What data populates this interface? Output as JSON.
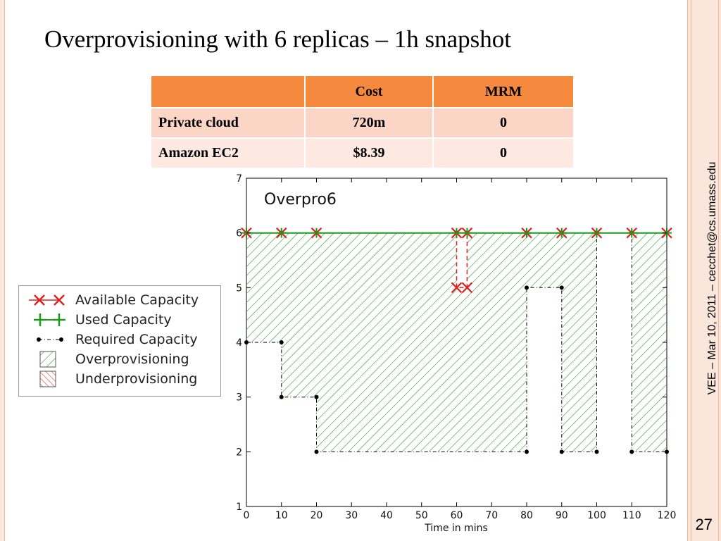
{
  "slide": {
    "title": "Overprovisioning with 6 replicas – 1h snapshot",
    "footer_vertical": "VEE – Mar 10, 2011 – cecchet@cs.umass.edu",
    "page_number": "27"
  },
  "table": {
    "headers": [
      "",
      "Cost",
      "MRM"
    ],
    "rows": [
      [
        "Private cloud",
        "720m",
        "0"
      ],
      [
        "Amazon EC2",
        "$8.39",
        "0"
      ]
    ]
  },
  "legend": {
    "items": [
      {
        "label": "Available Capacity",
        "icon": "red-x-markers"
      },
      {
        "label": "Used Capacity",
        "icon": "green-plus-markers"
      },
      {
        "label": "Required Capacity",
        "icon": "black-dot-dashdot"
      },
      {
        "label": "Overprovisioning",
        "icon": "green-hatch"
      },
      {
        "label": "Underprovisioning",
        "icon": "red-hatch"
      }
    ]
  },
  "chart_data": {
    "type": "line",
    "title": "Overpro6",
    "xlabel": "Time in mins",
    "ylabel": "",
    "xlim": [
      0,
      120
    ],
    "ylim": [
      1,
      7
    ],
    "xticks": [
      0,
      10,
      20,
      30,
      40,
      50,
      60,
      70,
      80,
      90,
      100,
      110,
      120
    ],
    "yticks": [
      1,
      2,
      3,
      4,
      5,
      6,
      7
    ],
    "grid": false,
    "colors": {
      "available": "#dd2222",
      "used": "#1a9a1a",
      "required": "#000000",
      "over_hatch": "#2a9a2a",
      "under_hatch": "#e03030"
    },
    "series": [
      {
        "name": "Available Capacity",
        "points": [
          [
            0,
            6
          ],
          [
            10,
            6
          ],
          [
            20,
            6
          ],
          [
            60,
            6
          ],
          [
            60,
            5
          ],
          [
            63,
            5
          ],
          [
            63,
            6
          ],
          [
            80,
            6
          ],
          [
            90,
            6
          ],
          [
            100,
            6
          ],
          [
            110,
            6
          ],
          [
            120,
            6
          ]
        ]
      },
      {
        "name": "Used Capacity",
        "points": [
          [
            0,
            6
          ],
          [
            10,
            6
          ],
          [
            20,
            6
          ],
          [
            60,
            6
          ],
          [
            63,
            6
          ],
          [
            80,
            6
          ],
          [
            90,
            6
          ],
          [
            100,
            6
          ],
          [
            110,
            6
          ],
          [
            120,
            6
          ]
        ]
      },
      {
        "name": "Required Capacity",
        "points": [
          [
            0,
            4
          ],
          [
            10,
            4
          ],
          [
            10,
            3
          ],
          [
            20,
            3
          ],
          [
            20,
            2
          ],
          [
            80,
            2
          ],
          [
            80,
            5
          ],
          [
            90,
            5
          ],
          [
            90,
            2
          ],
          [
            100,
            2
          ],
          [
            100,
            6
          ],
          [
            110,
            6
          ],
          [
            110,
            2
          ],
          [
            120,
            2
          ]
        ]
      }
    ]
  }
}
